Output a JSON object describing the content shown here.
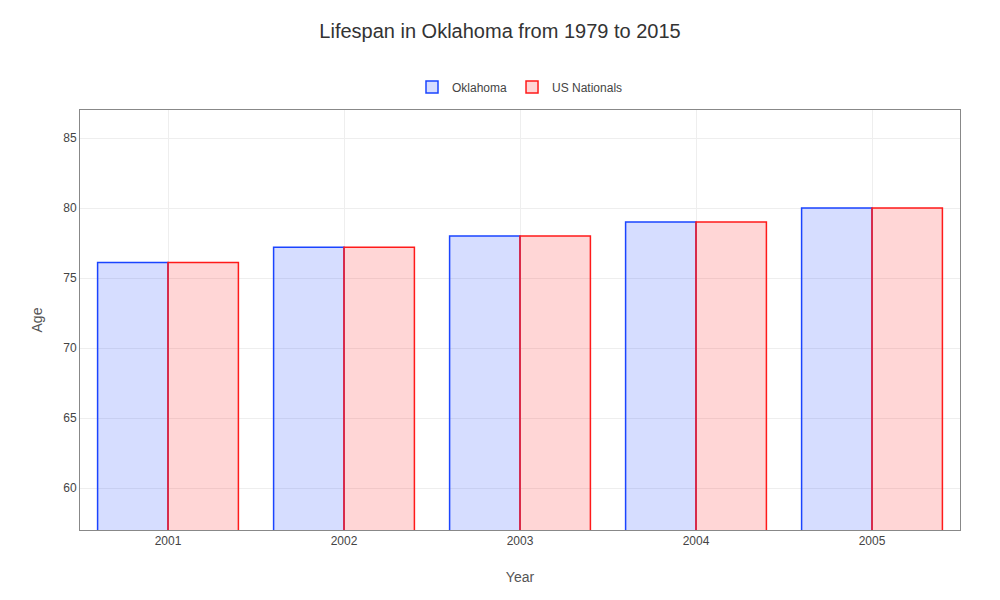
{
  "chart_data": {
    "type": "bar",
    "title": "Lifespan in Oklahoma from 1979 to 2015",
    "xlabel": "Year",
    "ylabel": "Age",
    "categories": [
      "2001",
      "2002",
      "2003",
      "2004",
      "2005"
    ],
    "series": [
      {
        "name": "Oklahoma",
        "color": "#1a44ff",
        "values": [
          76.1,
          77.2,
          78.0,
          79.0,
          80.0
        ]
      },
      {
        "name": "US Nationals",
        "color": "#ff1a1a",
        "values": [
          76.1,
          77.2,
          78.0,
          79.0,
          80.0
        ]
      }
    ],
    "ylim": [
      57,
      87
    ],
    "yticks": [
      60,
      65,
      70,
      75,
      80,
      85
    ],
    "grid": true,
    "legend": "top"
  }
}
